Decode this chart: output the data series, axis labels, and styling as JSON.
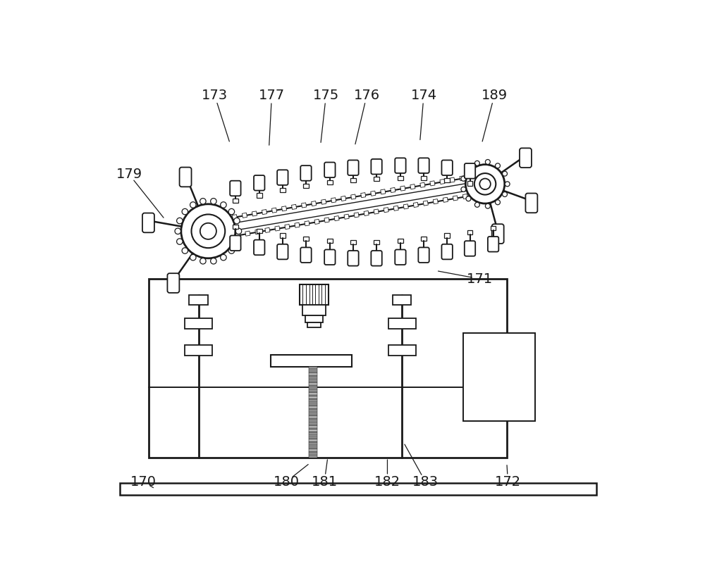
{
  "bg_color": "#ffffff",
  "line_color": "#1a1a1a",
  "label_color": "#1a1a1a",
  "label_fontsize": 14,
  "fig_w": 10.0,
  "fig_h": 8.11,
  "dpi": 100,
  "annotations": [
    [
      "173",
      230,
      50,
      258,
      138
    ],
    [
      "177",
      335,
      50,
      330,
      145
    ],
    [
      "175",
      435,
      50,
      425,
      140
    ],
    [
      "176",
      510,
      50,
      488,
      143
    ],
    [
      "174",
      615,
      50,
      608,
      135
    ],
    [
      "189",
      745,
      50,
      722,
      138
    ],
    [
      "179",
      72,
      195,
      138,
      278
    ],
    [
      "171",
      718,
      388,
      638,
      373
    ],
    [
      "170",
      98,
      762,
      120,
      775
    ],
    [
      "180",
      362,
      762,
      405,
      728
    ],
    [
      "181",
      432,
      762,
      438,
      718
    ],
    [
      "182",
      548,
      762,
      548,
      718
    ],
    [
      "183",
      618,
      762,
      578,
      690
    ],
    [
      "172",
      770,
      762,
      768,
      728
    ]
  ]
}
